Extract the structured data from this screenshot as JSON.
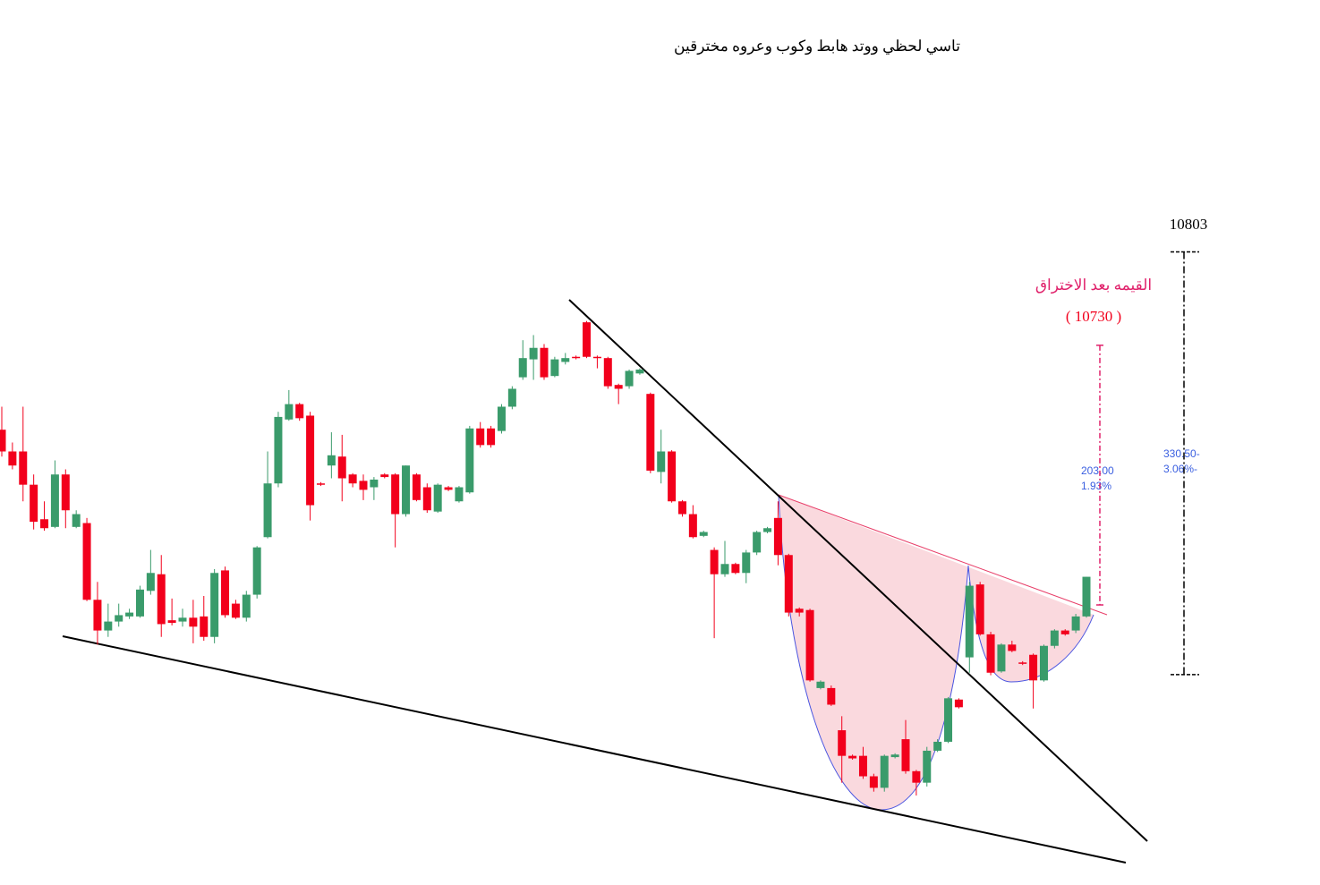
{
  "chart_data": {
    "type": "candlestick",
    "title": "تاسي لحظي ووتد هابط وكوب وعروه مخترقين",
    "up_color": "#3a9b6b",
    "down_color": "#f2001c",
    "ylim": [
      10308,
      11000
    ],
    "open": [
      10664,
      10647,
      10647,
      10621,
      10594,
      10588,
      10629,
      10588,
      10591,
      10531,
      10507,
      10514,
      10518,
      10518,
      10538,
      10551,
      10515,
      10514,
      10517,
      10518,
      10502,
      10554,
      10528,
      10517,
      10535,
      10580,
      10622,
      10672,
      10684,
      10675,
      10622,
      10636,
      10643,
      10629,
      10624,
      10619,
      10629,
      10629,
      10598,
      10629,
      10619,
      10600,
      10619,
      10608,
      10615,
      10665,
      10665,
      10663,
      10682,
      10705,
      10719,
      10728,
      10706,
      10717,
      10721,
      10748,
      10721,
      10720,
      10699,
      10698,
      10708,
      10692,
      10631,
      10647,
      10608,
      10598,
      10581,
      10570,
      10551,
      10559,
      10552,
      10568,
      10584,
      10595,
      10566,
      10524,
      10523,
      10462,
      10462,
      10429,
      10409,
      10409,
      10393,
      10384,
      10408,
      10422,
      10397,
      10388,
      10413,
      10420,
      10453,
      10486,
      10543,
      10504,
      10475,
      10496,
      10482,
      10488,
      10468,
      10495,
      10507,
      10507,
      10518
    ],
    "high": [
      10682,
      10654,
      10682,
      10629,
      10608,
      10640,
      10633,
      10601,
      10595,
      10545,
      10528,
      10528,
      10524,
      10542,
      10570,
      10566,
      10532,
      10524,
      10531,
      10534,
      10555,
      10557,
      10531,
      10538,
      10573,
      10647,
      10678,
      10695,
      10685,
      10678,
      10623,
      10662,
      10660,
      10630,
      10629,
      10627,
      10630,
      10630,
      10636,
      10630,
      10622,
      10622,
      10620,
      10620,
      10667,
      10670,
      10667,
      10684,
      10698,
      10734,
      10738,
      10731,
      10721,
      10724,
      10722,
      10749,
      10722,
      10721,
      10700,
      10711,
      10712,
      10693,
      10664,
      10648,
      10609,
      10605,
      10585,
      10572,
      10577,
      10560,
      10570,
      10585,
      10588,
      10608,
      10567,
      10525,
      10524,
      10468,
      10464,
      10440,
      10410,
      10416,
      10395,
      10410,
      10411,
      10437,
      10398,
      10416,
      10422,
      10455,
      10454,
      10545,
      10545,
      10506,
      10497,
      10499,
      10483,
      10489,
      10496,
      10508,
      10508,
      10520,
      10549
    ],
    "low": [
      10643,
      10633,
      10608,
      10586,
      10585,
      10587,
      10587,
      10587,
      10530,
      10496,
      10502,
      10510,
      10516,
      10517,
      10535,
      10502,
      10511,
      10510,
      10497,
      10499,
      10497,
      10517,
      10516,
      10514,
      10532,
      10579,
      10619,
      10671,
      10671,
      10593,
      10620,
      10626,
      10608,
      10619,
      10609,
      10609,
      10626,
      10572,
      10596,
      10608,
      10599,
      10599,
      10616,
      10607,
      10614,
      10650,
      10650,
      10661,
      10680,
      10703,
      10703,
      10703,
      10705,
      10715,
      10719,
      10720,
      10712,
      10696,
      10684,
      10696,
      10707,
      10630,
      10622,
      10607,
      10596,
      10579,
      10580,
      10501,
      10549,
      10551,
      10544,
      10566,
      10583,
      10558,
      10518,
      10518,
      10467,
      10461,
      10448,
      10388,
      10406,
      10391,
      10381,
      10381,
      10407,
      10395,
      10378,
      10385,
      10412,
      10419,
      10446,
      10474,
      10503,
      10472,
      10474,
      10490,
      10480,
      10446,
      10467,
      10493,
      10503,
      10505,
      10517
    ],
    "close": [
      10647,
      10636,
      10621,
      10592,
      10587,
      10629,
      10601,
      10598,
      10531,
      10507,
      10514,
      10519,
      10521,
      10539,
      10552,
      10512,
      10513,
      10517,
      10510,
      10502,
      10552,
      10519,
      10517,
      10535,
      10572,
      10622,
      10674,
      10684,
      10673,
      10605,
      10621,
      10644,
      10626,
      10622,
      10617,
      10625,
      10627,
      10598,
      10636,
      10609,
      10601,
      10621,
      10617,
      10619,
      10665,
      10652,
      10652,
      10682,
      10696,
      10720,
      10728,
      10705,
      10719,
      10720,
      10720,
      10721,
      10720,
      10698,
      10696,
      10710,
      10711,
      10632,
      10647,
      10608,
      10598,
      10580,
      10584,
      10551,
      10559,
      10552,
      10568,
      10584,
      10587,
      10566,
      10521,
      10521,
      10468,
      10467,
      10449,
      10409,
      10407,
      10393,
      10384,
      10409,
      10410,
      10397,
      10388,
      10413,
      10420,
      10454,
      10447,
      10542,
      10504,
      10474,
      10496,
      10491,
      10481,
      10468,
      10495,
      10507,
      10504,
      10518,
      10549
    ],
    "target": {
      "title": "القيمه بعد الاختراق",
      "color": "#e0206a",
      "level": {
        "value": 10730,
        "label": "( 10730 )"
      },
      "change": {
        "value": 203,
        "label": "203.00"
      },
      "percent": {
        "value": 1.93,
        "label": "1.93%"
      }
    },
    "measure": {
      "level": 10803,
      "change": {
        "value": -330.5,
        "label": "330.50-"
      },
      "percent": {
        "value": -3.06,
        "label": "3.06%-"
      }
    }
  }
}
